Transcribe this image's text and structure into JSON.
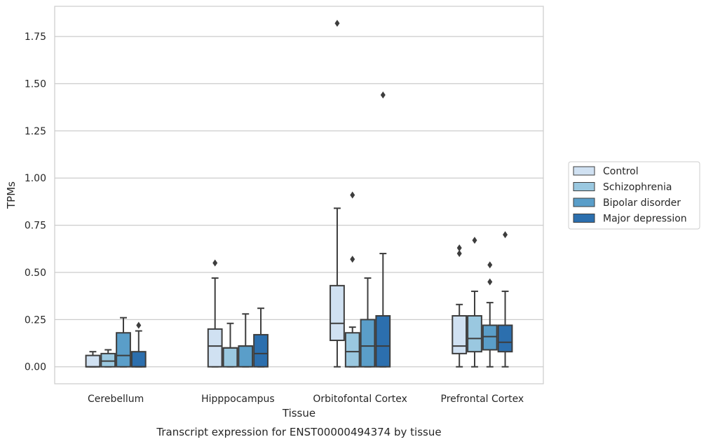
{
  "chart_data": {
    "type": "box",
    "caption": "Transcript expression for ENST00000494374 by tissue",
    "xlabel": "Tissue",
    "ylabel": "TPMs",
    "ylim": [
      -0.09,
      1.91
    ],
    "yticks": [
      0.0,
      0.25,
      0.5,
      0.75,
      1.0,
      1.25,
      1.5,
      1.75
    ],
    "ytick_labels": [
      "0.00",
      "0.25",
      "0.50",
      "0.75",
      "1.00",
      "1.25",
      "1.50",
      "1.75"
    ],
    "grid": true,
    "legend_position": "right",
    "categories": [
      "Cerebellum",
      "Hipppocampus",
      "Orbitofontal Cortex",
      "Prefrontal Cortex"
    ],
    "series": [
      {
        "name": "Control",
        "color": "#d0e1f2",
        "boxes": [
          {
            "whisker_low": 0.0,
            "q1": 0.0,
            "median": 0.0,
            "q3": 0.06,
            "whisker_high": 0.08,
            "outliers": []
          },
          {
            "whisker_low": 0.0,
            "q1": 0.0,
            "median": 0.11,
            "q3": 0.2,
            "whisker_high": 0.47,
            "outliers": [
              0.55
            ]
          },
          {
            "whisker_low": 0.0,
            "q1": 0.14,
            "median": 0.23,
            "q3": 0.43,
            "whisker_high": 0.84,
            "outliers": [
              1.82
            ]
          },
          {
            "whisker_low": 0.0,
            "q1": 0.07,
            "median": 0.11,
            "q3": 0.27,
            "whisker_high": 0.33,
            "outliers": [
              0.6,
              0.63
            ]
          }
        ]
      },
      {
        "name": "Schizophrenia",
        "color": "#9ac8e0",
        "boxes": [
          {
            "whisker_low": 0.0,
            "q1": 0.0,
            "median": 0.03,
            "q3": 0.07,
            "whisker_high": 0.09,
            "outliers": []
          },
          {
            "whisker_low": 0.0,
            "q1": 0.0,
            "median": 0.1,
            "q3": 0.1,
            "whisker_high": 0.23,
            "outliers": []
          },
          {
            "whisker_low": 0.0,
            "q1": 0.0,
            "median": 0.08,
            "q3": 0.18,
            "whisker_high": 0.21,
            "outliers": [
              0.57,
              0.91
            ]
          },
          {
            "whisker_low": 0.0,
            "q1": 0.08,
            "median": 0.15,
            "q3": 0.27,
            "whisker_high": 0.4,
            "outliers": [
              0.67
            ]
          }
        ]
      },
      {
        "name": "Bipolar disorder",
        "color": "#5a9ec9",
        "boxes": [
          {
            "whisker_low": 0.0,
            "q1": 0.0,
            "median": 0.06,
            "q3": 0.18,
            "whisker_high": 0.26,
            "outliers": []
          },
          {
            "whisker_low": 0.0,
            "q1": 0.0,
            "median": 0.11,
            "q3": 0.11,
            "whisker_high": 0.28,
            "outliers": []
          },
          {
            "whisker_low": 0.0,
            "q1": 0.0,
            "median": 0.11,
            "q3": 0.25,
            "whisker_high": 0.47,
            "outliers": []
          },
          {
            "whisker_low": 0.0,
            "q1": 0.09,
            "median": 0.16,
            "q3": 0.22,
            "whisker_high": 0.34,
            "outliers": [
              0.45,
              0.54
            ]
          }
        ]
      },
      {
        "name": "Major depression",
        "color": "#2c6fae",
        "boxes": [
          {
            "whisker_low": 0.0,
            "q1": 0.0,
            "median": 0.0,
            "q3": 0.08,
            "whisker_high": 0.19,
            "outliers": [
              0.22
            ]
          },
          {
            "whisker_low": 0.0,
            "q1": 0.0,
            "median": 0.07,
            "q3": 0.17,
            "whisker_high": 0.31,
            "outliers": []
          },
          {
            "whisker_low": 0.0,
            "q1": 0.0,
            "median": 0.11,
            "q3": 0.27,
            "whisker_high": 0.6,
            "outliers": [
              1.44
            ]
          },
          {
            "whisker_low": 0.0,
            "q1": 0.08,
            "median": 0.13,
            "q3": 0.22,
            "whisker_high": 0.4,
            "outliers": [
              0.7
            ]
          }
        ]
      }
    ]
  }
}
